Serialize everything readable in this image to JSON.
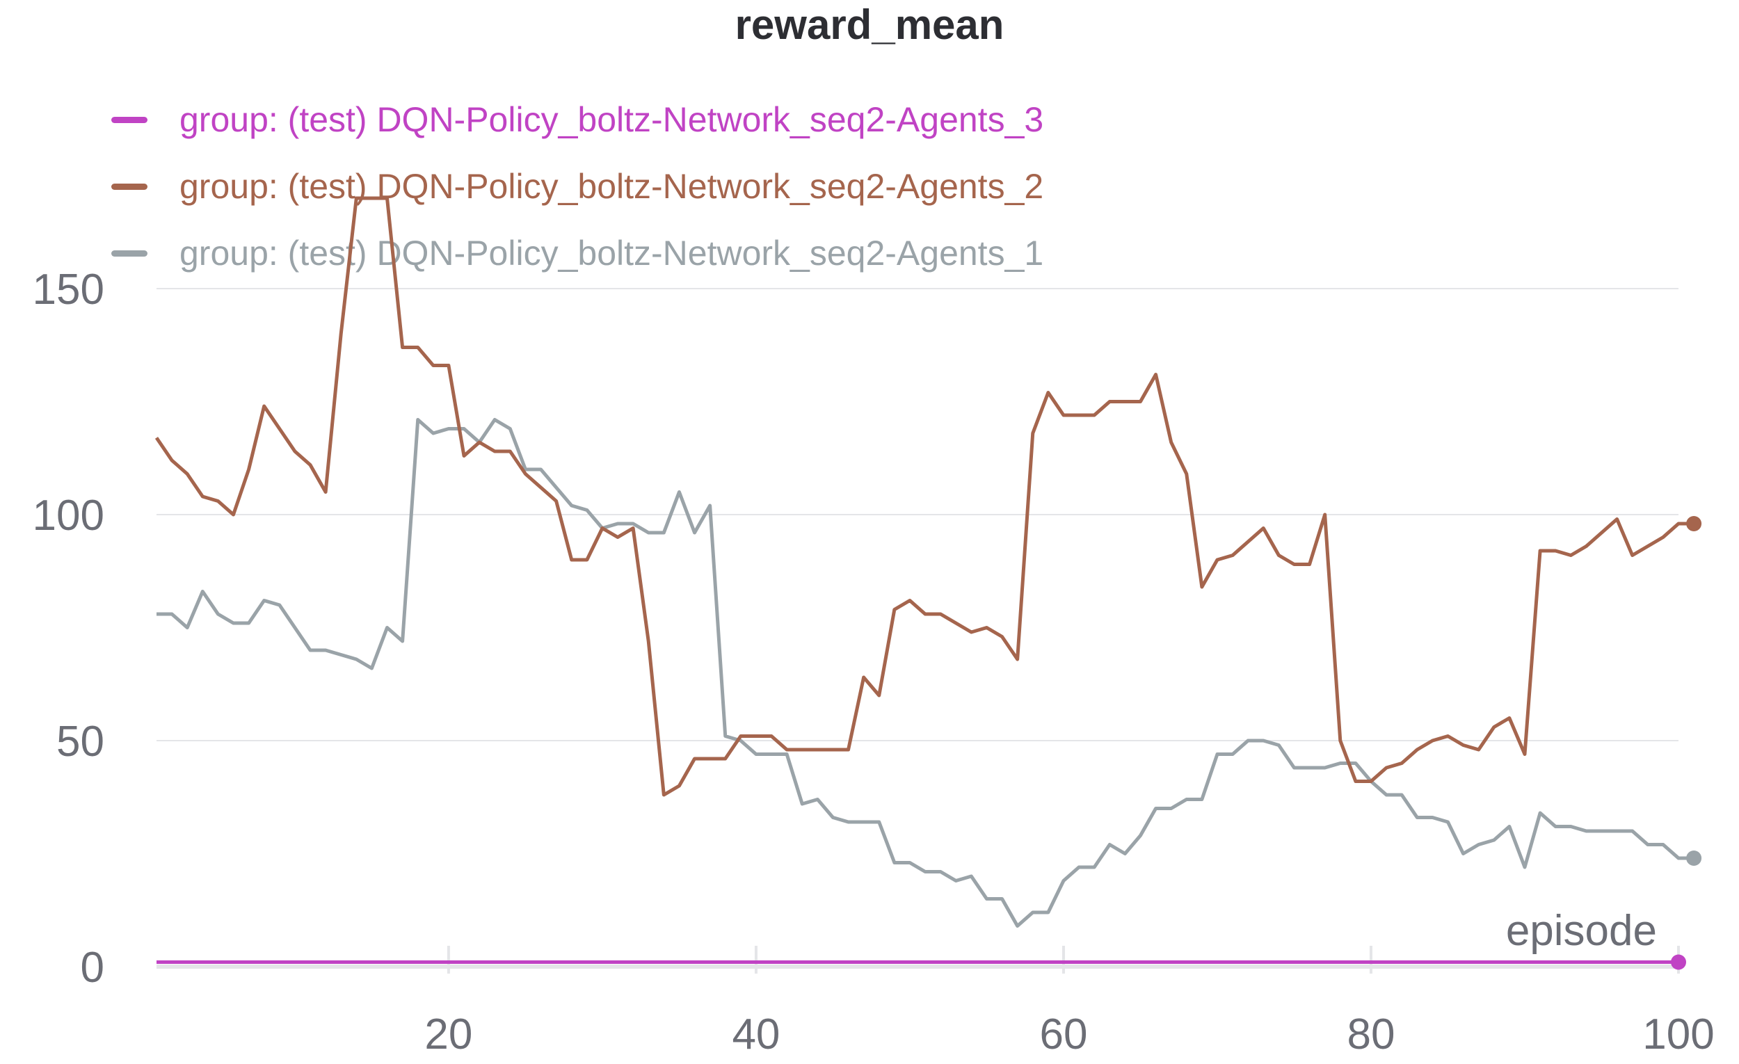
{
  "chart_data": {
    "type": "line",
    "title": "reward_mean",
    "xlabel": "episode",
    "ylabel": "",
    "xlim": [
      1,
      100
    ],
    "ylim": [
      0,
      170
    ],
    "x_ticks": [
      20,
      40,
      60,
      80,
      100
    ],
    "y_ticks": [
      0,
      50,
      100,
      150
    ],
    "grid": "horizontal",
    "legend_position": "top-left",
    "series": [
      {
        "name": "group: (test) DQN-Policy_boltz-Network_seq2-Agents_3",
        "color": "#c043c4",
        "values": [
          1.0,
          1.0,
          1.0,
          1.0,
          1.0,
          1.0,
          1.0,
          1.0,
          1.0,
          1.0,
          1.0,
          1.0,
          1.0,
          1.0,
          1.0,
          1.0,
          1.0,
          1.0,
          1.0,
          1.0,
          1.0,
          1.0,
          1.0,
          1.0,
          1.0,
          1.0,
          1.0,
          1.0,
          1.0,
          1.0,
          1.0,
          1.0,
          1.0,
          1.0,
          1.0,
          1.0,
          1.0,
          1.0,
          1.0,
          1.0,
          1.0,
          1.0,
          1.0,
          1.0,
          1.0,
          1.0,
          1.0,
          1.0,
          1.0,
          1.0,
          1.0,
          1.0,
          1.0,
          1.0,
          1.0,
          1.0,
          1.0,
          1.0,
          1.0,
          1.0,
          1.0,
          1.0,
          1.0,
          1.0,
          1.0,
          1.0,
          1.0,
          1.0,
          1.0,
          1.0,
          1.0,
          1.0,
          1.0,
          1.0,
          1.0,
          1.0,
          1.0,
          1.0,
          1.0,
          1.0,
          1.0,
          1.0,
          1.0,
          1.0,
          1.0,
          1.0,
          1.0,
          1.0,
          1.0,
          1.0,
          1.0,
          1.0,
          1.0,
          1.0,
          1.0,
          1.0,
          1.0,
          1.0,
          1.0,
          1.0
        ]
      },
      {
        "name": "group: (test) DQN-Policy_boltz-Network_seq2-Agents_2",
        "color": "#a5654d",
        "values": [
          117,
          112,
          109,
          104,
          103,
          100,
          110,
          124,
          119,
          114,
          111,
          105,
          140,
          170,
          170,
          170,
          137,
          137,
          133,
          133,
          113,
          116,
          114,
          114,
          109,
          106,
          103,
          90,
          90,
          97,
          95,
          97,
          72,
          38,
          40,
          46,
          46,
          46,
          51,
          51,
          51,
          48,
          48,
          48,
          48,
          48,
          64,
          60,
          79,
          81,
          78,
          78,
          76,
          74,
          75,
          73,
          68,
          118,
          127,
          122,
          122,
          122,
          125,
          125,
          125,
          131,
          116,
          109,
          84,
          90,
          91,
          94,
          97,
          91,
          89,
          89,
          100,
          50,
          41,
          41,
          44,
          45,
          48,
          50,
          51,
          49,
          48,
          53,
          55,
          47,
          92,
          92,
          91,
          93,
          96,
          99,
          91,
          93,
          95,
          98,
          98
        ]
      },
      {
        "name": "group: (test) DQN-Policy_boltz-Network_seq2-Agents_1",
        "color": "#9aa3a8",
        "values": [
          78,
          78,
          75,
          83,
          78,
          76,
          76,
          81,
          80,
          75,
          70,
          70,
          69,
          68,
          66,
          75,
          72,
          121,
          118,
          119,
          119,
          116,
          121,
          119,
          110,
          110,
          106,
          102,
          101,
          97,
          98,
          98,
          96,
          96,
          105,
          96,
          102,
          51,
          50,
          47,
          47,
          47,
          36,
          37,
          33,
          32,
          32,
          32,
          23,
          23,
          21,
          21,
          19,
          20,
          15,
          15,
          9,
          12,
          12,
          19,
          22,
          22,
          27,
          25,
          29,
          35,
          35,
          37,
          37,
          47,
          47,
          50,
          50,
          49,
          44,
          44,
          44,
          45,
          45,
          41,
          38,
          38,
          33,
          33,
          32,
          25,
          27,
          28,
          31,
          22,
          34,
          31,
          31,
          30,
          30,
          30,
          30,
          27,
          27,
          24,
          24
        ]
      }
    ]
  }
}
